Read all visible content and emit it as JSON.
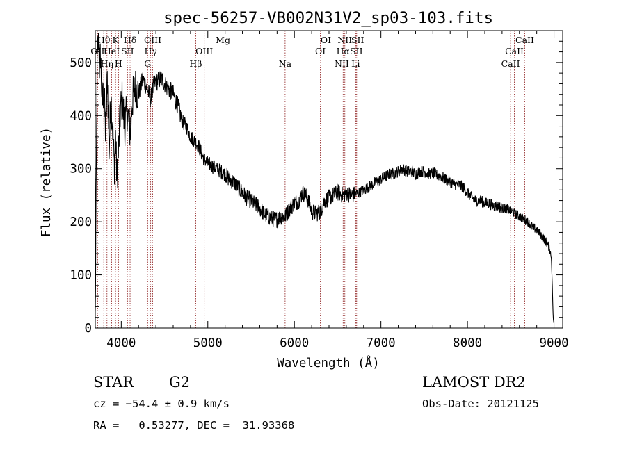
{
  "chart_data": {
    "type": "line",
    "title": "spec-56257-VB002N31V2_sp03-103.fits",
    "xlabel": "Wavelength (Å)",
    "ylabel": "Flux (relative)",
    "xlim": [
      3700,
      9100
    ],
    "ylim": [
      0,
      560
    ],
    "x_ticks": [
      4000,
      5000,
      6000,
      7000,
      8000,
      9000
    ],
    "y_ticks": [
      0,
      100,
      200,
      300,
      400,
      500
    ],
    "grid": false,
    "line_color": "#000000",
    "marker_color": "#8b1a1a",
    "spectrum": {
      "x": [
        3700,
        3710,
        3720,
        3730,
        3740,
        3750,
        3760,
        3780,
        3800,
        3820,
        3840,
        3860,
        3880,
        3900,
        3920,
        3934,
        3950,
        3968,
        3990,
        4010,
        4040,
        4070,
        4102,
        4130,
        4160,
        4200,
        4250,
        4300,
        4340,
        4380,
        4420,
        4460,
        4500,
        4550,
        4600,
        4650,
        4700,
        4750,
        4800,
        4861,
        4900,
        4950,
        5000,
        5050,
        5100,
        5150,
        5200,
        5250,
        5300,
        5350,
        5400,
        5450,
        5500,
        5550,
        5600,
        5650,
        5700,
        5750,
        5800,
        5850,
        5893,
        5950,
        6000,
        6050,
        6080,
        6100,
        6150,
        6200,
        6250,
        6300,
        6350,
        6400,
        6450,
        6500,
        6563,
        6600,
        6650,
        6700,
        6750,
        6800,
        6850,
        6900,
        6950,
        7000,
        7050,
        7100,
        7150,
        7200,
        7250,
        7300,
        7350,
        7400,
        7450,
        7500,
        7550,
        7600,
        7650,
        7700,
        7750,
        7800,
        7850,
        7900,
        7950,
        8000,
        8050,
        8100,
        8150,
        8200,
        8250,
        8300,
        8350,
        8400,
        8450,
        8500,
        8550,
        8600,
        8650,
        8700,
        8750,
        8800,
        8850,
        8900,
        8950,
        8970,
        8980,
        8990,
        9000
      ],
      "y": [
        20,
        250,
        480,
        530,
        550,
        480,
        520,
        420,
        450,
        360,
        480,
        330,
        440,
        380,
        300,
        360,
        280,
        330,
        410,
        430,
        380,
        410,
        370,
        430,
        455,
        440,
        470,
        450,
        430,
        460,
        465,
        470,
        460,
        450,
        440,
        420,
        390,
        380,
        360,
        350,
        340,
        320,
        310,
        305,
        300,
        295,
        290,
        280,
        275,
        265,
        255,
        245,
        240,
        232,
        225,
        215,
        210,
        205,
        205,
        210,
        210,
        225,
        235,
        240,
        250,
        255,
        245,
        220,
        215,
        220,
        240,
        245,
        250,
        255,
        250,
        255,
        250,
        252,
        255,
        260,
        265,
        270,
        275,
        280,
        285,
        290,
        290,
        295,
        300,
        295,
        295,
        290,
        295,
        295,
        290,
        292,
        288,
        285,
        280,
        275,
        270,
        270,
        265,
        255,
        245,
        240,
        240,
        235,
        235,
        230,
        230,
        225,
        225,
        220,
        215,
        210,
        205,
        200,
        190,
        185,
        175,
        165,
        150,
        130,
        80,
        20,
        5
      ]
    },
    "lines": [
      {
        "label": "Hθ",
        "x": 3798,
        "row": 1
      },
      {
        "label": "OII",
        "x": 3727,
        "row": 2
      },
      {
        "label": "Hη",
        "x": 3835,
        "row": 3
      },
      {
        "label": "HeI",
        "x": 3889,
        "row": 2
      },
      {
        "label": "K",
        "x": 3934,
        "row": 1
      },
      {
        "label": "SII",
        "x": 4072,
        "row": 2
      },
      {
        "label": "H",
        "x": 3968,
        "row": 3
      },
      {
        "label": "Hδ",
        "x": 4102,
        "row": 1
      },
      {
        "label": "OIII",
        "x": 4363,
        "row": 1
      },
      {
        "label": "Hγ",
        "x": 4340,
        "row": 2
      },
      {
        "label": "G",
        "x": 4305,
        "row": 3
      },
      {
        "label": "OIII",
        "x": 4959,
        "row": 2
      },
      {
        "label": "Hβ",
        "x": 4861,
        "row": 3
      },
      {
        "label": "Mg",
        "x": 5175,
        "row": 1
      },
      {
        "label": "Na",
        "x": 5893,
        "row": 3
      },
      {
        "label": "OI",
        "x": 6364,
        "row": 1
      },
      {
        "label": "OI",
        "x": 6300,
        "row": 2
      },
      {
        "label": "NII",
        "x": 6583,
        "row": 1
      },
      {
        "label": "Hα",
        "x": 6563,
        "row": 2
      },
      {
        "label": "NII",
        "x": 6548,
        "row": 3
      },
      {
        "label": "SII",
        "x": 6731,
        "row": 1
      },
      {
        "label": "SII",
        "x": 6716,
        "row": 2
      },
      {
        "label": "Li",
        "x": 6708,
        "row": 3
      },
      {
        "label": "CaII",
        "x": 8662,
        "row": 1
      },
      {
        "label": "CaII",
        "x": 8542,
        "row": 2
      },
      {
        "label": "CaII",
        "x": 8498,
        "row": 3
      }
    ]
  },
  "info": {
    "object_class": "STAR",
    "subclass": "G2",
    "survey": "LAMOST DR2",
    "redshift_text": "cz = −54.4 ± 0.9 km/s",
    "obs_date_text": "Obs-Date: 20121125",
    "coords_text": "RA =   0.53277, DEC =  31.93368"
  }
}
